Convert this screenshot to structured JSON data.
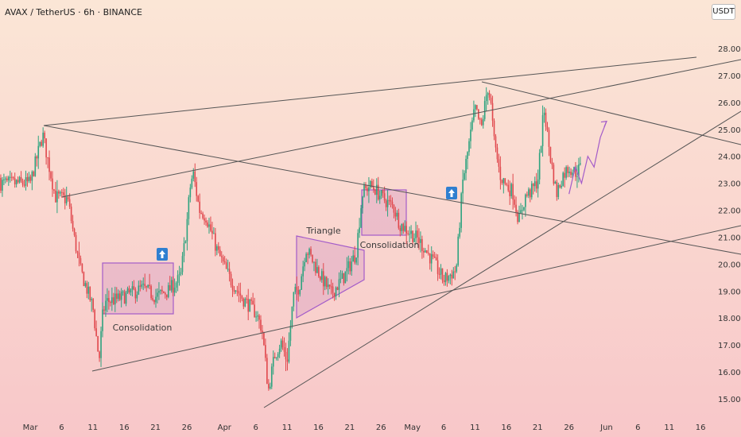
{
  "title": "AVAX / TetherUS · 6h · BINANCE",
  "currency_badge": "USDT",
  "colors": {
    "bg_top": "#fbe6d6",
    "bg_bottom": "#f8c7c9",
    "up": "#2ea37f",
    "down": "#e0484d",
    "trendline": "#555555",
    "pattern_line": "#a35cc9",
    "pattern_fill": "#e0a9c4",
    "arrow_badge": "#2f7fd0"
  },
  "annotations": {
    "consolidation_1": "Consolidation",
    "triangle": "Triangle",
    "consolidation_2": "Consolidation"
  },
  "chart_data": {
    "type": "candlestick",
    "title": "AVAX / TetherUS · 6h · BINANCE",
    "ylim": [
      14.5,
      28.3
    ],
    "grid": false,
    "y_ticks": [
      "15.00",
      "16.00",
      "17.00",
      "18.00",
      "19.00",
      "20.00",
      "21.00",
      "22.00",
      "23.00",
      "24.00",
      "25.00",
      "26.00",
      "27.00",
      "28.00"
    ],
    "x_ticks": [
      "Mar",
      "6",
      "11",
      "16",
      "21",
      "26",
      "Apr",
      "6",
      "11",
      "16",
      "21",
      "26",
      "May",
      "6",
      "11",
      "16",
      "21",
      "26",
      "Jun",
      "6",
      "11",
      "16"
    ],
    "price_path_days": [
      0,
      2,
      4,
      6,
      7,
      8,
      10,
      11,
      11.5,
      12,
      14,
      16,
      18,
      20,
      22,
      24,
      25,
      25.5,
      26,
      27,
      28,
      30,
      32,
      34,
      36,
      37,
      38,
      39,
      40,
      41,
      42,
      43,
      44,
      46,
      48,
      50,
      52,
      53,
      54,
      55,
      56,
      57,
      58,
      59,
      60,
      62,
      64,
      66,
      68,
      69,
      70,
      71,
      72,
      73,
      73.5,
      74,
      75,
      76,
      77,
      78,
      79,
      80,
      81,
      82,
      83,
      84,
      85,
      86,
      87,
      88
    ],
    "price_path": [
      23.0,
      24.8,
      22.5,
      22.4,
      21.0,
      19.8,
      18.4,
      16.4,
      18.0,
      18.6,
      18.7,
      18.9,
      19.1,
      18.8,
      19.0,
      19.5,
      21.5,
      22.8,
      23.4,
      22.0,
      21.8,
      20.4,
      19.4,
      18.7,
      18.2,
      17.6,
      15.3,
      16.6,
      17.1,
      16.4,
      18.8,
      19.2,
      20.6,
      19.7,
      18.9,
      19.5,
      20.4,
      22.6,
      22.9,
      22.8,
      22.5,
      22.3,
      22.1,
      21.5,
      21.3,
      20.9,
      20.2,
      19.4,
      19.8,
      23.0,
      24.4,
      25.8,
      25.0,
      26.6,
      26.0,
      24.6,
      23.3,
      22.9,
      22.7,
      21.6,
      22.5,
      22.7,
      23.1,
      25.8,
      24.0,
      22.6,
      23.3,
      23.6,
      23.4,
      23.6
    ],
    "projection_days": [
      86,
      87,
      88,
      89,
      90,
      91,
      92
    ],
    "projection": [
      22.6,
      23.6,
      23.0,
      24.0,
      23.6,
      24.7,
      25.3
    ],
    "trendlines_comment": "Drawn pattern lines (rising wedge, descending resistance, support lines) reproduced geometrically in the template"
  }
}
